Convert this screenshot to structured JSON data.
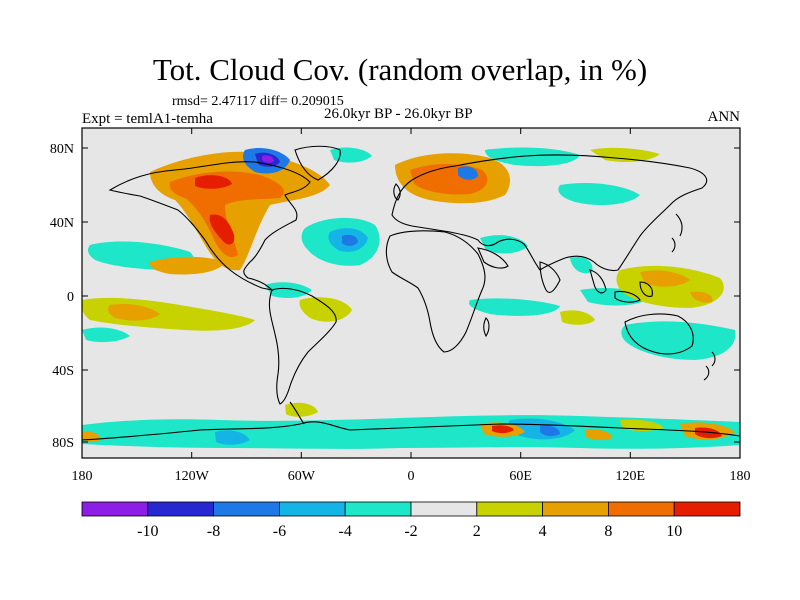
{
  "title": "Tot. Cloud Cov. (random overlap, in %)",
  "stats": "rmsd= 2.47117 diff= 0.209015",
  "experiment": "Expt = temlA1-temha",
  "period": "26.0kyr BP - 26.0kyr BP",
  "season": "ANN",
  "map": {
    "lon_ticks": [
      "180",
      "120W",
      "60W",
      "0",
      "60E",
      "120E",
      "180"
    ],
    "lat_ticks": [
      "80N",
      "40N",
      "0",
      "40S",
      "80S"
    ]
  },
  "colorbar": {
    "labels": [
      "-10",
      "-8",
      "-6",
      "-4",
      "-2",
      "2",
      "4",
      "8",
      "10"
    ],
    "colors": [
      "#8c1ee6",
      "#2828d2",
      "#1e78e6",
      "#14b4e6",
      "#1ee6c8",
      "#e6e6e6",
      "#c8d200",
      "#e6a000",
      "#f06e00",
      "#e61e00"
    ]
  }
}
